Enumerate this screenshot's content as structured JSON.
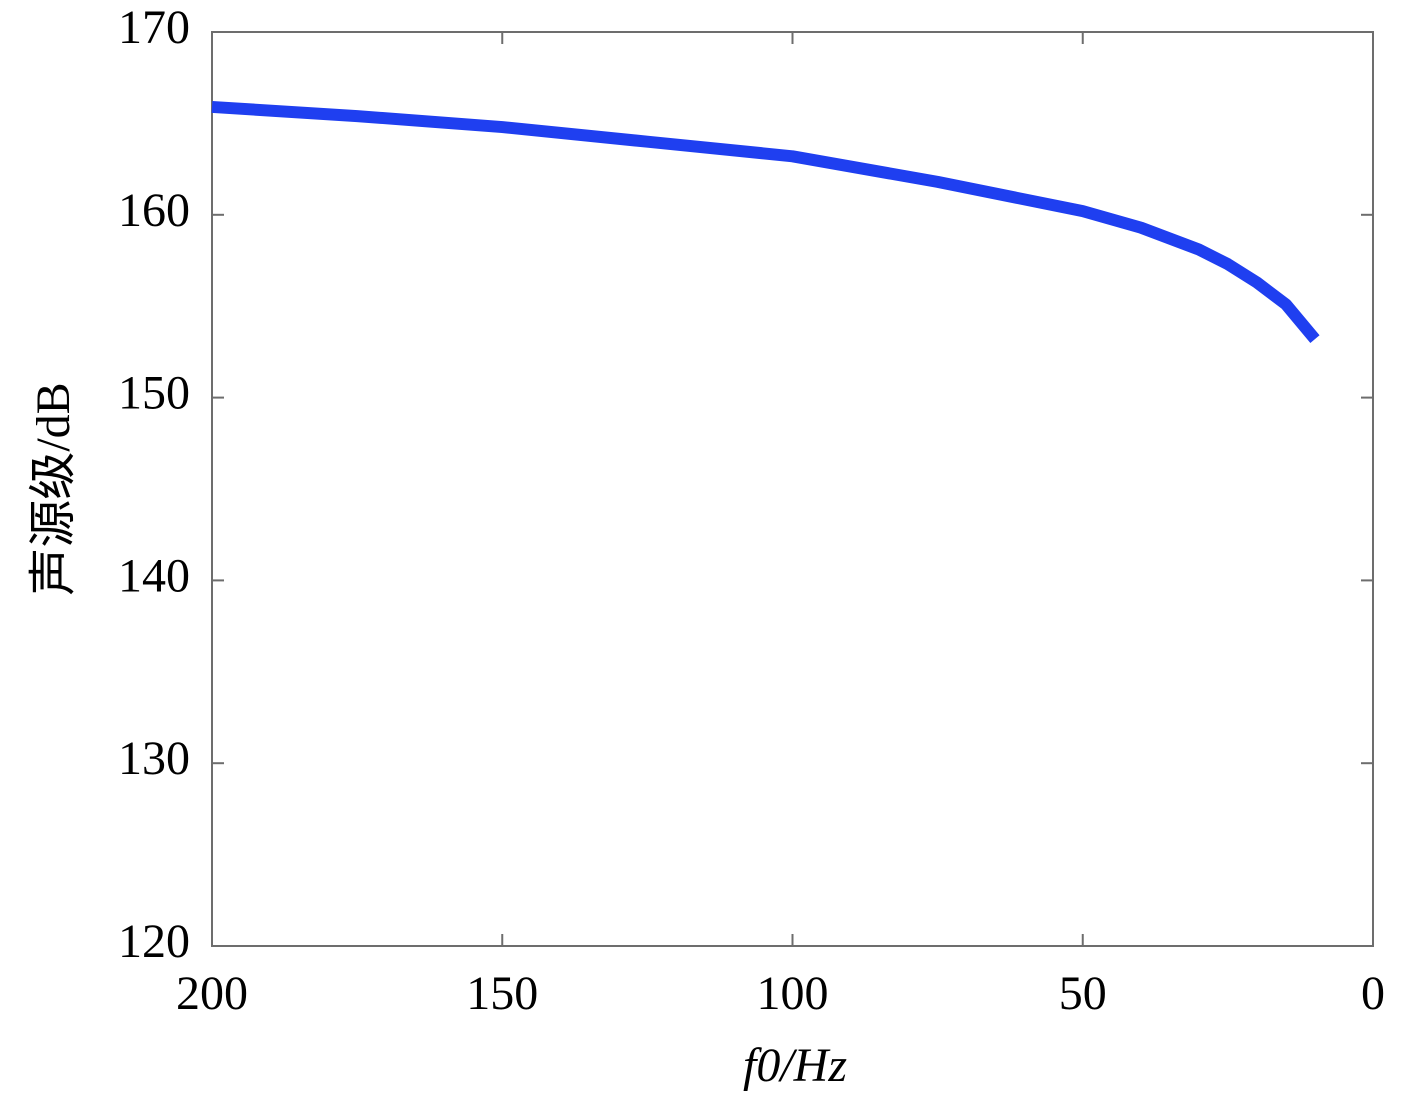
{
  "chart_data": {
    "type": "line",
    "xlabel": "f0/Hz",
    "ylabel": "声源级/dB",
    "x": [
      200,
      175,
      150,
      125,
      100,
      75,
      50,
      40,
      30,
      25,
      20,
      15,
      10
    ],
    "series": [
      {
        "color": "#1f3ff0",
        "values": [
          165.9,
          165.4,
          164.8,
          164.0,
          163.2,
          161.8,
          160.2,
          159.3,
          158.1,
          157.3,
          156.3,
          155.1,
          153.2
        ]
      }
    ],
    "xlim": [
      200,
      0
    ],
    "xticks": [
      200,
      150,
      100,
      50,
      0
    ],
    "ylim": [
      120,
      170
    ],
    "yticks": [
      120,
      130,
      140,
      150,
      160,
      170
    ],
    "grid": false
  }
}
